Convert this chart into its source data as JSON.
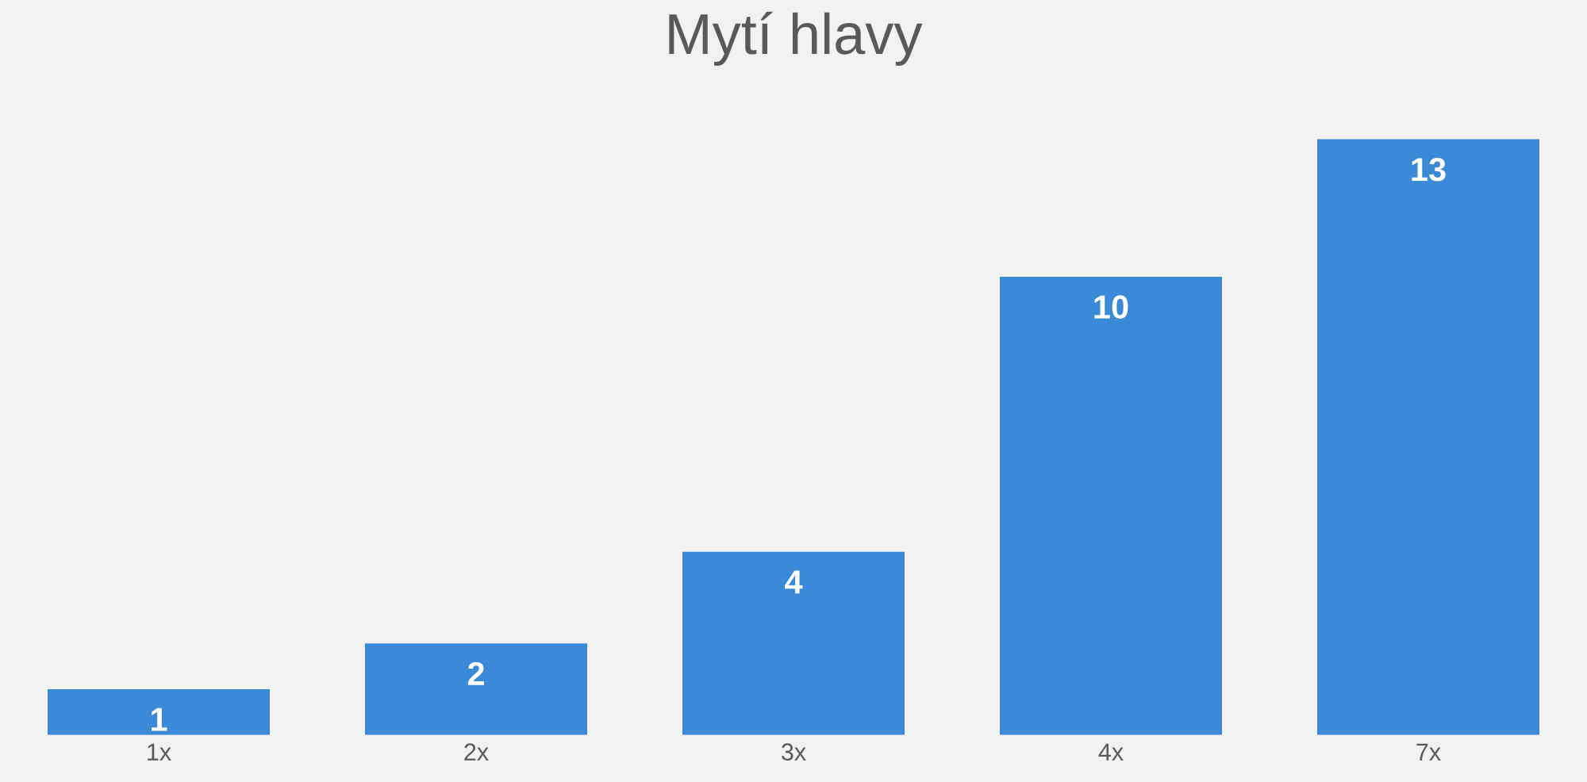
{
  "chart_data": {
    "type": "bar",
    "title": "Mytí hlavy",
    "categories": [
      "1x",
      "2x",
      "3x",
      "4x",
      "7x"
    ],
    "values": [
      1,
      2,
      4,
      10,
      13
    ],
    "color": "#3a8ad8",
    "data_labels": true,
    "grid": false,
    "legend": false
  }
}
